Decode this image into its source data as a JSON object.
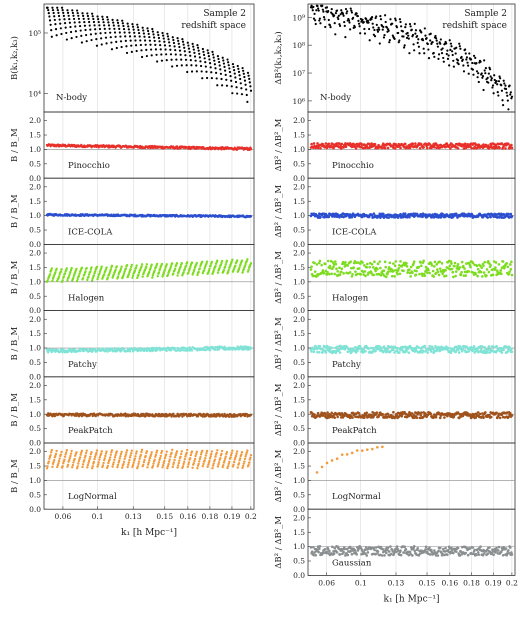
{
  "chart_data": {
    "type": "scatter",
    "x_ticks": [
      "0.06",
      "0.1",
      "0.13",
      "0.15",
      "0.16",
      "0.18",
      "0.19",
      "0.2"
    ],
    "xlabel": "k₁ [h Mpc⁻¹]",
    "sample_note": [
      "Sample 2",
      "redshift space"
    ],
    "reference_label": "N-body",
    "left_column": {
      "top_ylabel": "B(k₁,k₂,k₃)",
      "top_y_ticks": [
        "10⁴",
        "10⁵"
      ],
      "top_ylim": [
        5000,
        300000
      ],
      "ratio_ylabel": "B / B_M",
      "ratio_y_ticks": [
        "0.0",
        "0.5",
        "1.0",
        "1.5",
        "2.0"
      ],
      "ratio_ylim": [
        0,
        2.3
      ]
    },
    "right_column": {
      "top_ylabel": "ΔB²(k₁,k₂,k₃)",
      "top_y_ticks": [
        "10⁶",
        "10⁷",
        "10⁸",
        "10⁹"
      ],
      "top_ylim": [
        400000,
        3000000000
      ],
      "ratio_ylabel": "ΔB² / ΔB²_M",
      "ratio_y_ticks": [
        "0.0",
        "0.5",
        "1.0",
        "1.5",
        "2.0"
      ],
      "ratio_ylim": [
        0,
        2.3
      ]
    },
    "series": [
      {
        "name": "Pinocchio",
        "color": "#e8302a",
        "left_ratio": 1.08,
        "left_slope": -0.12,
        "left_spread": 0.04,
        "right_ratio": 1.12,
        "right_spread": 0.09
      },
      {
        "name": "ICE-COLA",
        "color": "#2b4fcf",
        "left_ratio": 1.0,
        "left_slope": -0.06,
        "left_spread": 0.03,
        "right_ratio": 1.0,
        "right_spread": 0.07
      },
      {
        "name": "Halogen",
        "color": "#7ddc1f",
        "left_ratio": 1.4,
        "left_slope": 0.35,
        "left_spread": 0.3,
        "right_ratio": 1.45,
        "right_spread": 0.28
      },
      {
        "name": "Patchy",
        "color": "#7fe3d6",
        "left_ratio": 0.95,
        "left_slope": 0.1,
        "left_spread": 0.06,
        "right_ratio": 0.95,
        "right_spread": 0.12
      },
      {
        "name": "PeakPatch",
        "color": "#a0521c",
        "left_ratio": 0.97,
        "left_slope": -0.02,
        "left_spread": 0.05,
        "right_ratio": 0.97,
        "right_spread": 0.1
      },
      {
        "name": "LogNormal",
        "color": "#f29a3c",
        "left_ratio": 1.75,
        "left_slope": 0.0,
        "left_spread": 0.4,
        "right_ratio": 1.4,
        "right_spread": 0.5
      },
      {
        "name": "Gaussian",
        "color": "#8a8f8f",
        "left_ratio": null,
        "left_slope": 0,
        "left_spread": 0,
        "right_ratio": 0.85,
        "right_spread": 0.16
      }
    ]
  }
}
